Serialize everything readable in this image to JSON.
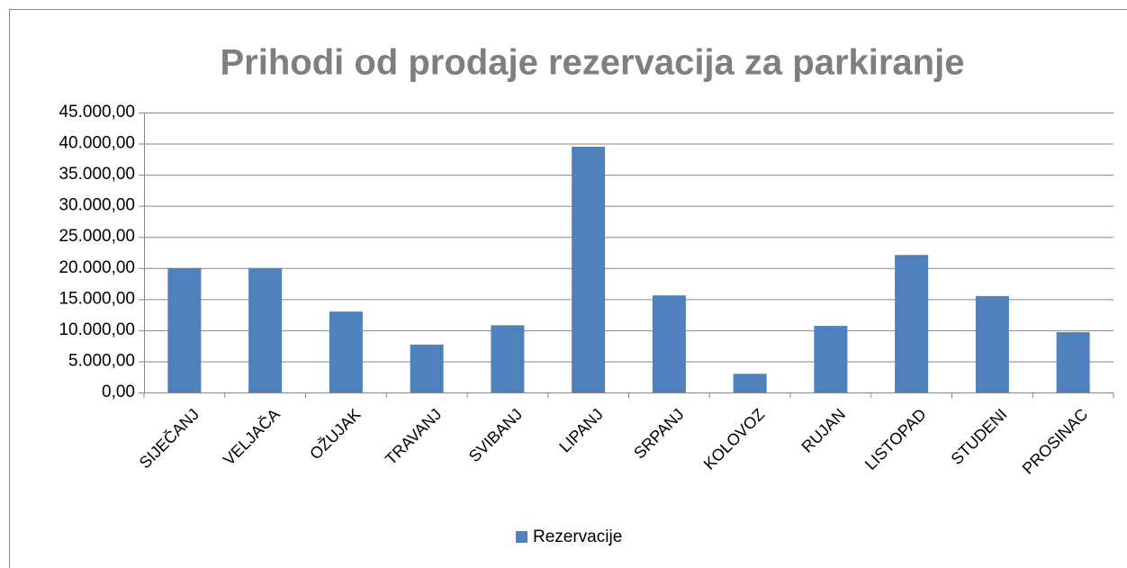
{
  "chart_data": {
    "type": "bar",
    "title": "Prihodi od prodaje rezervacija za parkiranje",
    "categories": [
      "SIJEČANJ",
      "VELJAČA",
      "OŽUJAK",
      "TRAVANJ",
      "SVIBANJ",
      "LIPANJ",
      "SRPANJ",
      "KOLOVOZ",
      "RUJAN",
      "LISTOPAD",
      "STUDENI",
      "PROSINAC"
    ],
    "series": [
      {
        "name": "Rezervacije",
        "color": "#4f81bd",
        "values": [
          20000,
          20000,
          13000,
          7700,
          10800,
          39500,
          15600,
          3000,
          10700,
          22100,
          15500,
          9700
        ]
      }
    ],
    "ylim": [
      0,
      45000
    ],
    "yticks": [
      {
        "value": 0,
        "label": "0,00"
      },
      {
        "value": 5000,
        "label": "5.000,00"
      },
      {
        "value": 10000,
        "label": "10.000,00"
      },
      {
        "value": 15000,
        "label": "15.000,00"
      },
      {
        "value": 20000,
        "label": "20.000,00"
      },
      {
        "value": 25000,
        "label": "25.000,00"
      },
      {
        "value": 30000,
        "label": "30.000,00"
      },
      {
        "value": 35000,
        "label": "35.000,00"
      },
      {
        "value": 40000,
        "label": "40.000,00"
      },
      {
        "value": 45000,
        "label": "45.000,00"
      }
    ],
    "grid": true,
    "legend": "bottom"
  }
}
